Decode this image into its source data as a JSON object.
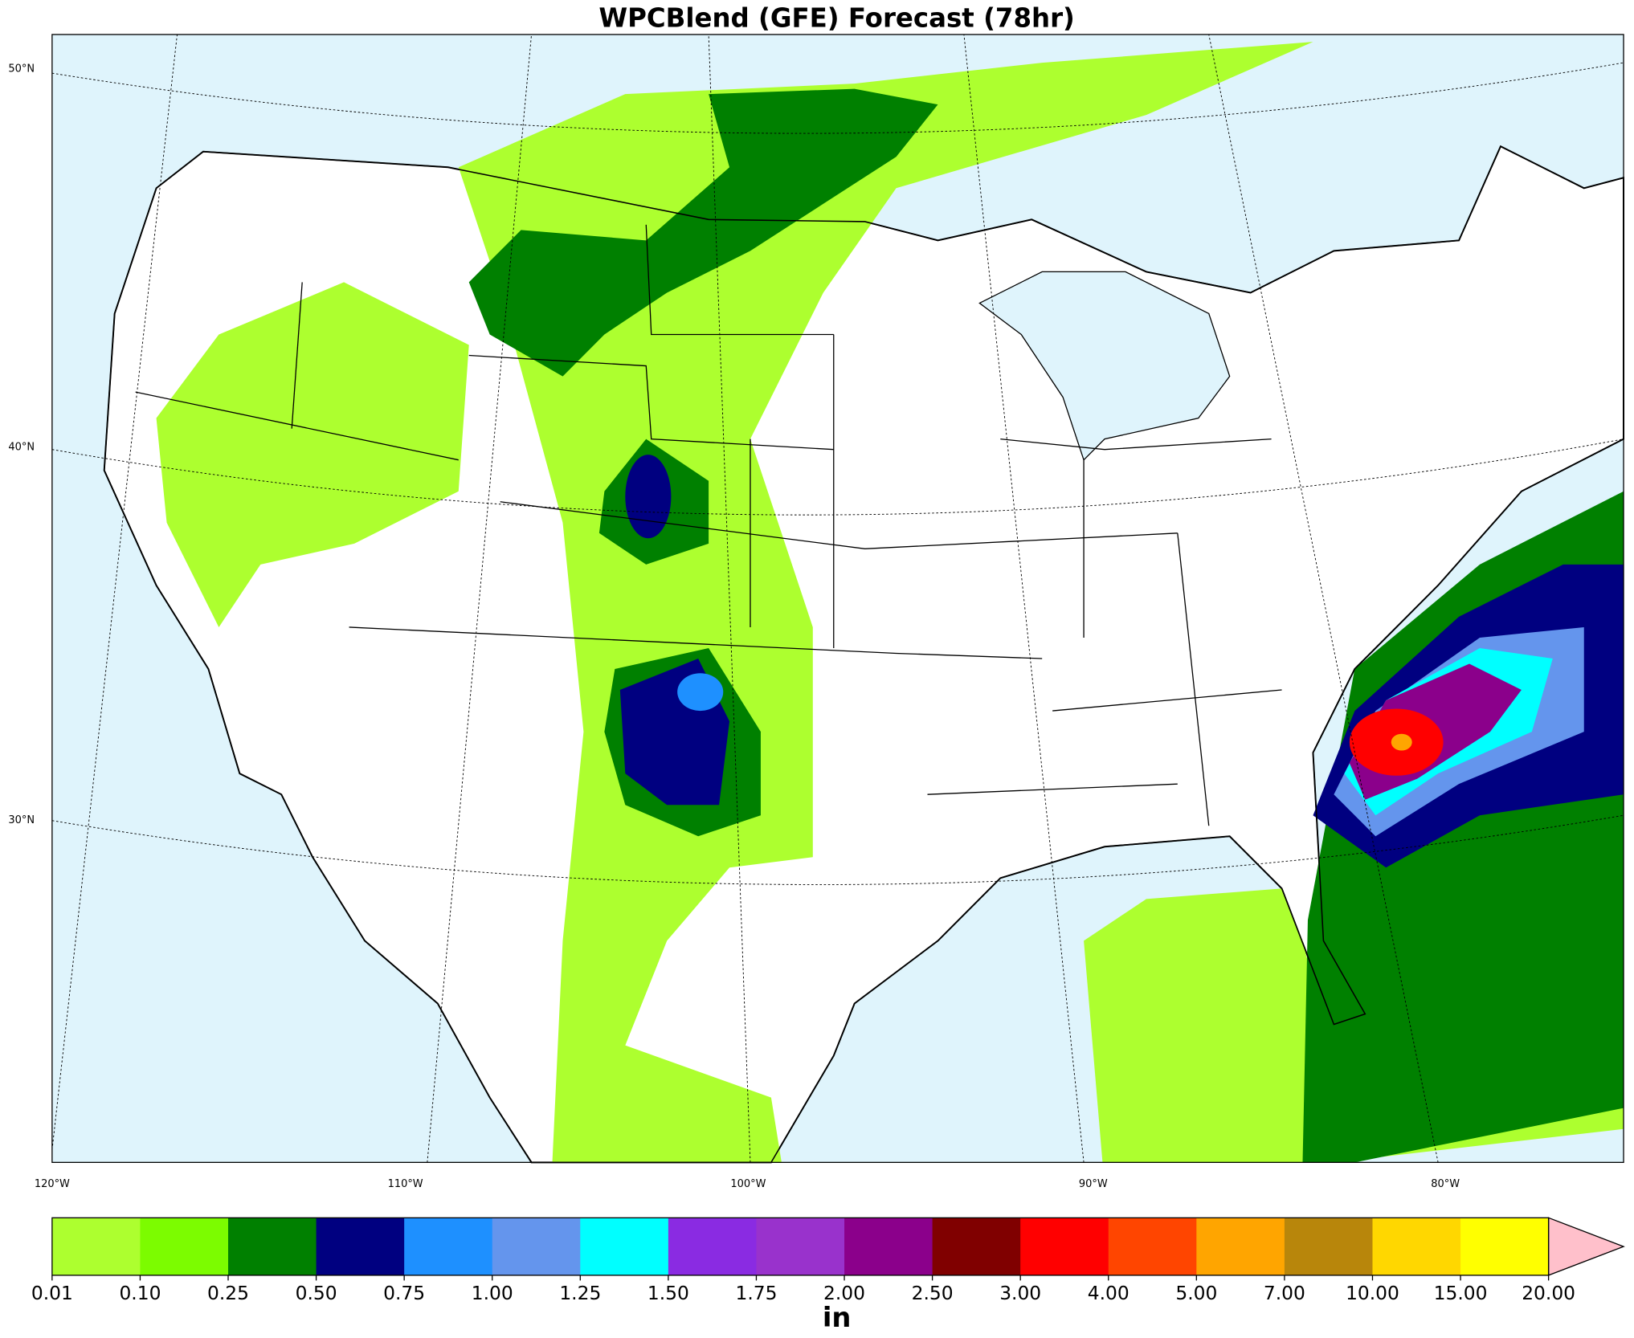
{
  "title": "WPCBlend (GFE) Forecast (78hr)",
  "lat_labels": [
    "50°N",
    "40°N",
    "30°N"
  ],
  "lon_labels": [
    "120°W",
    "110°W",
    "100°W",
    "90°W",
    "80°W"
  ],
  "colorbar": {
    "levels": [
      {
        "value": 0.01,
        "label": "0.01"
      },
      {
        "value": 0.1,
        "label": "0.10"
      },
      {
        "value": 0.25,
        "label": "0.25"
      },
      {
        "value": 0.5,
        "label": "0.50"
      },
      {
        "value": 0.75,
        "label": "0.75"
      },
      {
        "value": 1,
        "label": "1.00"
      },
      {
        "value": 1.25,
        "label": "1.25"
      },
      {
        "value": 1.5,
        "label": "1.50"
      },
      {
        "value": 1.75,
        "label": "1.75"
      },
      {
        "value": 2,
        "label": "2.00"
      },
      {
        "value": 2.5,
        "label": "2.50"
      },
      {
        "value": 3,
        "label": "3.00"
      },
      {
        "value": 4,
        "label": "4.00"
      },
      {
        "value": 5,
        "label": "5.00"
      },
      {
        "value": 7,
        "label": "7.00"
      },
      {
        "value": 10,
        "label": "10.00"
      },
      {
        "value": 15,
        "label": "15.00"
      },
      {
        "value": 20,
        "label": "20.00"
      }
    ],
    "colors": [
      "#adff2f",
      "#7cfc00",
      "#008000",
      "#000080",
      "#1e90ff",
      "#6495ed",
      "#00ffff",
      "#8a2be2",
      "#9932cc",
      "#8b008b",
      "#800000",
      "#ff0000",
      "#ff4500",
      "#ffa500",
      "#b8860b",
      "#ffd700",
      "#ffff00"
    ],
    "extend_color": "#ffc0cb",
    "label": "in"
  }
}
